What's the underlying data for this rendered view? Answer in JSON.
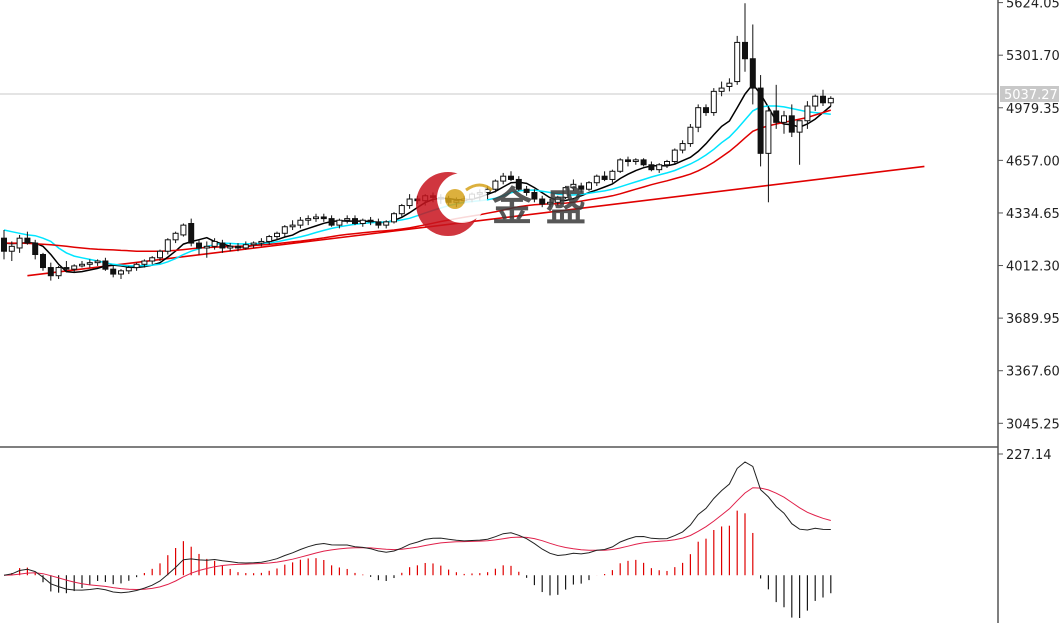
{
  "chart_data": [
    {
      "type": "candlestick",
      "price_axis": {
        "ticks": [
          "5624.05",
          "5301.70",
          "4979.35",
          "4657.00",
          "4334.65",
          "4012.30",
          "3689.95",
          "3367.60",
          "3045.25"
        ],
        "ylim": [
          2900,
          5640
        ],
        "current_price": "5037.27"
      },
      "candles": [
        [
          4180,
          4230,
          4050,
          4100
        ],
        [
          4100,
          4160,
          4040,
          4130
        ],
        [
          4120,
          4200,
          4090,
          4180
        ],
        [
          4180,
          4220,
          4140,
          4150
        ],
        [
          4150,
          4170,
          4050,
          4080
        ],
        [
          4080,
          4090,
          3980,
          4000
        ],
        [
          4000,
          4030,
          3920,
          3950
        ],
        [
          3950,
          4010,
          3930,
          4000
        ],
        [
          4000,
          4040,
          3970,
          3990
        ],
        [
          3990,
          4020,
          3970,
          4010
        ],
        [
          4010,
          4040,
          4000,
          4020
        ],
        [
          4020,
          4050,
          4000,
          4030
        ],
        [
          4030,
          4050,
          4010,
          4040
        ],
        [
          4040,
          4060,
          3980,
          3990
        ],
        [
          3990,
          4010,
          3940,
          3960
        ],
        [
          3960,
          3990,
          3930,
          3980
        ],
        [
          3980,
          4010,
          3960,
          4000
        ],
        [
          4000,
          4030,
          3980,
          4020
        ],
        [
          4020,
          4050,
          4000,
          4040
        ],
        [
          4040,
          4070,
          4020,
          4060
        ],
        [
          4060,
          4110,
          4040,
          4100
        ],
        [
          4100,
          4180,
          4080,
          4170
        ],
        [
          4170,
          4220,
          4150,
          4210
        ],
        [
          4200,
          4270,
          4190,
          4260
        ],
        [
          4270,
          4300,
          4130,
          4150
        ],
        [
          4150,
          4170,
          4080,
          4120
        ],
        [
          4120,
          4160,
          4060,
          4130
        ],
        [
          4130,
          4180,
          4110,
          4160
        ],
        [
          4150,
          4170,
          4090,
          4120
        ],
        [
          4120,
          4150,
          4100,
          4130
        ],
        [
          4130,
          4150,
          4100,
          4120
        ],
        [
          4120,
          4160,
          4110,
          4140
        ],
        [
          4140,
          4160,
          4120,
          4150
        ],
        [
          4150,
          4180,
          4130,
          4160
        ],
        [
          4160,
          4200,
          4140,
          4190
        ],
        [
          4190,
          4220,
          4170,
          4210
        ],
        [
          4210,
          4260,
          4190,
          4250
        ],
        [
          4250,
          4290,
          4230,
          4260
        ],
        [
          4260,
          4310,
          4240,
          4290
        ],
        [
          4290,
          4320,
          4260,
          4300
        ],
        [
          4300,
          4330,
          4280,
          4310
        ],
        [
          4310,
          4330,
          4280,
          4300
        ],
        [
          4300,
          4320,
          4250,
          4260
        ],
        [
          4260,
          4300,
          4240,
          4290
        ],
        [
          4290,
          4320,
          4270,
          4300
        ],
        [
          4300,
          4320,
          4260,
          4270
        ],
        [
          4270,
          4300,
          4250,
          4290
        ],
        [
          4290,
          4310,
          4260,
          4280
        ],
        [
          4280,
          4300,
          4240,
          4260
        ],
        [
          4260,
          4290,
          4240,
          4280
        ],
        [
          4280,
          4340,
          4270,
          4330
        ],
        [
          4330,
          4390,
          4310,
          4380
        ],
        [
          4380,
          4450,
          4360,
          4420
        ],
        [
          4420,
          4440,
          4390,
          4410
        ],
        [
          4410,
          4450,
          4380,
          4440
        ],
        [
          4440,
          4460,
          4400,
          4430
        ],
        [
          4430,
          4450,
          4390,
          4420
        ],
        [
          4420,
          4440,
          4380,
          4400
        ],
        [
          4400,
          4430,
          4370,
          4410
        ],
        [
          4410,
          4440,
          4390,
          4420
        ],
        [
          4420,
          4460,
          4400,
          4450
        ],
        [
          4450,
          4480,
          4410,
          4460
        ],
        [
          4460,
          4500,
          4420,
          4480
        ],
        [
          4480,
          4540,
          4460,
          4530
        ],
        [
          4530,
          4580,
          4510,
          4560
        ],
        [
          4560,
          4590,
          4530,
          4540
        ],
        [
          4540,
          4560,
          4470,
          4480
        ],
        [
          4480,
          4500,
          4440,
          4460
        ],
        [
          4460,
          4480,
          4400,
          4420
        ],
        [
          4420,
          4440,
          4370,
          4390
        ],
        [
          4390,
          4420,
          4370,
          4400
        ],
        [
          4400,
          4440,
          4380,
          4430
        ],
        [
          4430,
          4500,
          4420,
          4490
        ],
        [
          4490,
          4540,
          4470,
          4510
        ],
        [
          4500,
          4520,
          4460,
          4480
        ],
        [
          4480,
          4530,
          4470,
          4520
        ],
        [
          4520,
          4570,
          4500,
          4560
        ],
        [
          4560,
          4590,
          4530,
          4540
        ],
        [
          4540,
          4600,
          4520,
          4590
        ],
        [
          4590,
          4670,
          4580,
          4660
        ],
        [
          4660,
          4680,
          4620,
          4650
        ],
        [
          4650,
          4670,
          4630,
          4660
        ],
        [
          4660,
          4670,
          4620,
          4630
        ],
        [
          4630,
          4650,
          4590,
          4600
        ],
        [
          4600,
          4640,
          4580,
          4630
        ],
        [
          4630,
          4660,
          4610,
          4650
        ],
        [
          4650,
          4730,
          4630,
          4720
        ],
        [
          4720,
          4780,
          4700,
          4760
        ],
        [
          4760,
          4880,
          4740,
          4860
        ],
        [
          4860,
          5000,
          4830,
          4980
        ],
        [
          4980,
          5000,
          4930,
          4950
        ],
        [
          4950,
          5100,
          4930,
          5080
        ],
        [
          5080,
          5140,
          5050,
          5100
        ],
        [
          5110,
          5160,
          5080,
          5130
        ],
        [
          5140,
          5420,
          5120,
          5380
        ],
        [
          5380,
          5620,
          5200,
          5280
        ],
        [
          5280,
          5490,
          5000,
          5100
        ],
        [
          5100,
          5180,
          4620,
          4700
        ],
        [
          4700,
          4990,
          4400,
          4960
        ],
        [
          4960,
          5120,
          4850,
          4890
        ],
        [
          4890,
          4960,
          4820,
          4930
        ],
        [
          4930,
          5000,
          4800,
          4830
        ],
        [
          4830,
          4900,
          4630,
          4900
        ],
        [
          4900,
          5020,
          4850,
          4990
        ],
        [
          4990,
          5060,
          4960,
          5050
        ],
        [
          5050,
          5090,
          4990,
          5010
        ],
        [
          5010,
          5050,
          4990,
          5037
        ]
      ],
      "moving_averages": [
        {
          "color": "#000000",
          "values": [
            4150,
            4147,
            4149,
            4153,
            4150,
            4130,
            4080,
            4020,
            3975,
            3970,
            3975,
            3985,
            3995,
            4010,
            4015,
            4010,
            4003,
            4000,
            4006,
            4015,
            4030,
            4064,
            4101,
            4144,
            4159,
            4171,
            4183,
            4159,
            4145,
            4131,
            4126,
            4128,
            4135,
            4145,
            4159,
            4171,
            4187,
            4199,
            4224,
            4240,
            4255,
            4271,
            4282,
            4287,
            4285,
            4285,
            4285,
            4283,
            4277,
            4276,
            4289,
            4308,
            4336,
            4368,
            4398,
            4418,
            4425,
            4423,
            4416,
            4416,
            4419,
            4431,
            4449,
            4467,
            4494,
            4520,
            4523,
            4516,
            4490,
            4458,
            4428,
            4411,
            4411,
            4422,
            4440,
            4460,
            4476,
            4494,
            4512,
            4546,
            4572,
            4594,
            4612,
            4623,
            4625,
            4623,
            4634,
            4655,
            4676,
            4712,
            4759,
            4814,
            4865,
            4898,
            4980,
            5063,
            5123,
            5063,
            4983,
            4898,
            4880,
            4875,
            4860,
            4880,
            4910,
            4950,
            4990
          ]
        },
        {
          "color": "#00e5ff",
          "values": [
            4230,
            4220,
            4210,
            4200,
            4195,
            4180,
            4160,
            4120,
            4090,
            4070,
            4060,
            4050,
            4040,
            4030,
            4020,
            4015,
            4010,
            4010,
            4012,
            4015,
            4020,
            4035,
            4055,
            4080,
            4100,
            4115,
            4130,
            4140,
            4150,
            4148,
            4145,
            4145,
            4146,
            4148,
            4150,
            4158,
            4168,
            4178,
            4188,
            4200,
            4215,
            4228,
            4240,
            4250,
            4258,
            4265,
            4270,
            4275,
            4278,
            4280,
            4285,
            4292,
            4302,
            4318,
            4335,
            4350,
            4365,
            4380,
            4390,
            4400,
            4405,
            4410,
            4415,
            4425,
            4440,
            4458,
            4470,
            4475,
            4475,
            4468,
            4460,
            4450,
            4445,
            4445,
            4448,
            4455,
            4463,
            4470,
            4480,
            4495,
            4510,
            4525,
            4540,
            4555,
            4568,
            4580,
            4595,
            4615,
            4635,
            4660,
            4690,
            4725,
            4765,
            4800,
            4850,
            4905,
            4960,
            4985,
            4990,
            4990,
            4985,
            4975,
            4965,
            4955,
            4950,
            4945,
            4940
          ]
        },
        {
          "color": "#e00000",
          "values": [
            4150,
            4150,
            4150,
            4148,
            4146,
            4143,
            4140,
            4135,
            4130,
            4125,
            4120,
            4115,
            4112,
            4110,
            4108,
            4105,
            4103,
            4100,
            4100,
            4100,
            4100,
            4102,
            4105,
            4110,
            4115,
            4120,
            4123,
            4125,
            4127,
            4128,
            4130,
            4132,
            4135,
            4138,
            4142,
            4147,
            4152,
            4157,
            4162,
            4168,
            4175,
            4182,
            4190,
            4197,
            4203,
            4208,
            4213,
            4218,
            4222,
            4226,
            4230,
            4236,
            4243,
            4252,
            4262,
            4272,
            4282,
            4291,
            4300,
            4308,
            4316,
            4324,
            4333,
            4342,
            4352,
            4363,
            4373,
            4380,
            4385,
            4388,
            4390,
            4392,
            4395,
            4400,
            4407,
            4415,
            4423,
            4431,
            4440,
            4452,
            4466,
            4480,
            4494,
            4508,
            4520,
            4532,
            4545,
            4558,
            4573,
            4593,
            4617,
            4645,
            4678,
            4712,
            4752,
            4795,
            4835,
            4855,
            4868,
            4880,
            4890,
            4900,
            4910,
            4920,
            4935,
            4950,
            4965
          ]
        }
      ],
      "trendlines": [
        {
          "color": "#e00000",
          "from": [
            3,
            3950
          ],
          "to": [
            118,
            4620
          ]
        }
      ]
    },
    {
      "type": "macd",
      "axis_label": "227.14",
      "dif_color": "#222222",
      "dea_color": "#e0204a",
      "histogram_pos_color": "#e00000",
      "histogram_neg_color": "#1a1a1a"
    }
  ]
}
